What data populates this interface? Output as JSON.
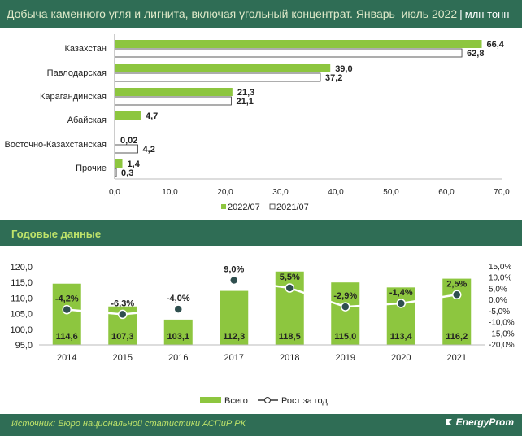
{
  "header": {
    "title": "Добыча каменного угля и лигнита, включая угольный концентрат. Январь–июль 2022",
    "separator": "|",
    "unit": "млн тонн"
  },
  "colors": {
    "green": "#8dc63f",
    "white": "#ffffff",
    "bg": "#2f6d55",
    "accent": "#bfe36a"
  },
  "section2": {
    "title": "Годовые данные"
  },
  "footer": {
    "source": "Источник: Бюро национальной статистики АСПиР РК",
    "brand": "EnergyProm"
  },
  "chart_data": [
    {
      "type": "bar",
      "orientation": "horizontal",
      "categories": [
        "Казахстан",
        "Павлодарская",
        "Карагандинская",
        "Абайская",
        "Восточно-Казахстанская",
        "Прочие"
      ],
      "series": [
        {
          "name": "2022/07",
          "values": [
            66.4,
            39.0,
            21.3,
            4.7,
            0.02,
            1.4
          ],
          "labels": [
            "66,4",
            "39,0",
            "21,3",
            "4,7",
            "0,02",
            "1,4"
          ]
        },
        {
          "name": "2021/07",
          "values": [
            62.8,
            37.2,
            21.1,
            null,
            4.2,
            0.3
          ],
          "labels": [
            "62,8",
            "37,2",
            "21,1",
            "",
            "4,2",
            "0,3"
          ]
        }
      ],
      "xlim": [
        0,
        70
      ],
      "ticks": [
        0,
        10,
        20,
        30,
        40,
        50,
        60,
        70
      ],
      "tick_labels": [
        "0,0",
        "10,0",
        "20,0",
        "30,0",
        "40,0",
        "50,0",
        "60,0",
        "70,0"
      ],
      "legend": [
        "2022/07",
        "2021/07"
      ],
      "legend_position": "bottom"
    },
    {
      "type": "bar+line",
      "categories": [
        "2014",
        "2015",
        "2016",
        "2017",
        "2018",
        "2019",
        "2020",
        "2021"
      ],
      "bars": {
        "name": "Всего",
        "values": [
          114.6,
          107.3,
          103.1,
          112.3,
          118.5,
          115.0,
          113.4,
          116.2
        ],
        "labels": [
          "114,6",
          "107,3",
          "103,1",
          "112,3",
          "118,5",
          "115,0",
          "113,4",
          "116,2"
        ]
      },
      "line": {
        "name": "Рост за год",
        "values": [
          -4.2,
          -6.3,
          -4.0,
          9.0,
          5.5,
          -2.9,
          -1.4,
          2.5
        ],
        "labels": [
          "-4,2%",
          "-6,3%",
          "-4,0%",
          "9,0%",
          "5,5%",
          "-2,9%",
          "-1,4%",
          "2,5%"
        ]
      },
      "ylim_left": [
        95,
        120
      ],
      "left_ticks": [
        95,
        100,
        105,
        110,
        115,
        120
      ],
      "left_tick_labels": [
        "95,0",
        "100,0",
        "105,0",
        "110,0",
        "115,0",
        "120,0"
      ],
      "ylim_right": [
        -20,
        15
      ],
      "right_ticks": [
        15,
        10,
        5,
        0,
        -5,
        -10,
        -15,
        -20
      ],
      "right_tick_labels": [
        "15,0%",
        "10,0%",
        "5,0%",
        "0,0%",
        "-5,0%",
        "-10,0%",
        "-15,0%",
        "-20,0%"
      ],
      "legend": [
        "Всего",
        "Рост за год"
      ],
      "legend_position": "bottom"
    }
  ]
}
